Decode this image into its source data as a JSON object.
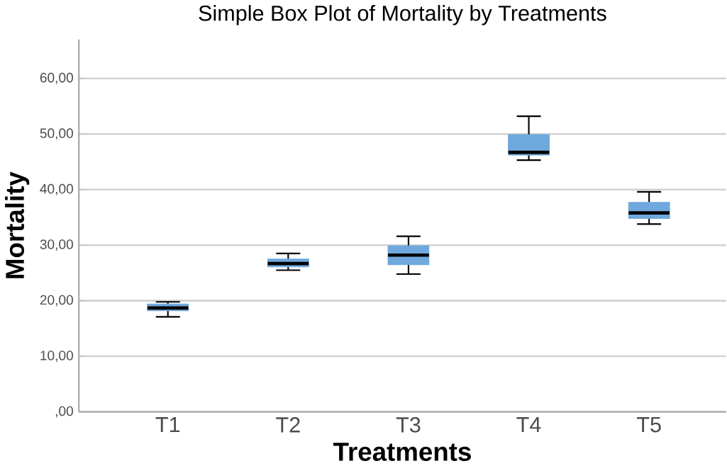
{
  "chart_data": {
    "type": "box",
    "title": "Simple Box Plot of Mortality by Treatments",
    "xlabel": "Treatments",
    "ylabel": "Mortality",
    "categories": [
      "T1",
      "T2",
      "T3",
      "T4",
      "T5"
    ],
    "color": "#6fa8dc",
    "boxes": [
      {
        "low": 17.1,
        "q1": 18.2,
        "median": 18.7,
        "q3": 19.4,
        "high": 19.8
      },
      {
        "low": 25.5,
        "q1": 26.1,
        "median": 26.7,
        "q3": 27.5,
        "high": 28.5
      },
      {
        "low": 24.8,
        "q1": 26.5,
        "median": 28.2,
        "q3": 29.9,
        "high": 31.6
      },
      {
        "low": 45.3,
        "q1": 46.2,
        "median": 46.7,
        "q3": 49.9,
        "high": 53.2
      },
      {
        "low": 33.8,
        "q1": 34.8,
        "median": 35.8,
        "q3": 37.7,
        "high": 39.6
      }
    ],
    "ylim": [
      0,
      67
    ],
    "yticks": [
      {
        "value": 0,
        "label": ",00"
      },
      {
        "value": 10,
        "label": "10,00"
      },
      {
        "value": 20,
        "label": "20,00"
      },
      {
        "value": 30,
        "label": "30,00"
      },
      {
        "value": 40,
        "label": "40,00"
      },
      {
        "value": 50,
        "label": "50,00"
      },
      {
        "value": 60,
        "label": "60,00"
      }
    ],
    "grid": "y"
  }
}
